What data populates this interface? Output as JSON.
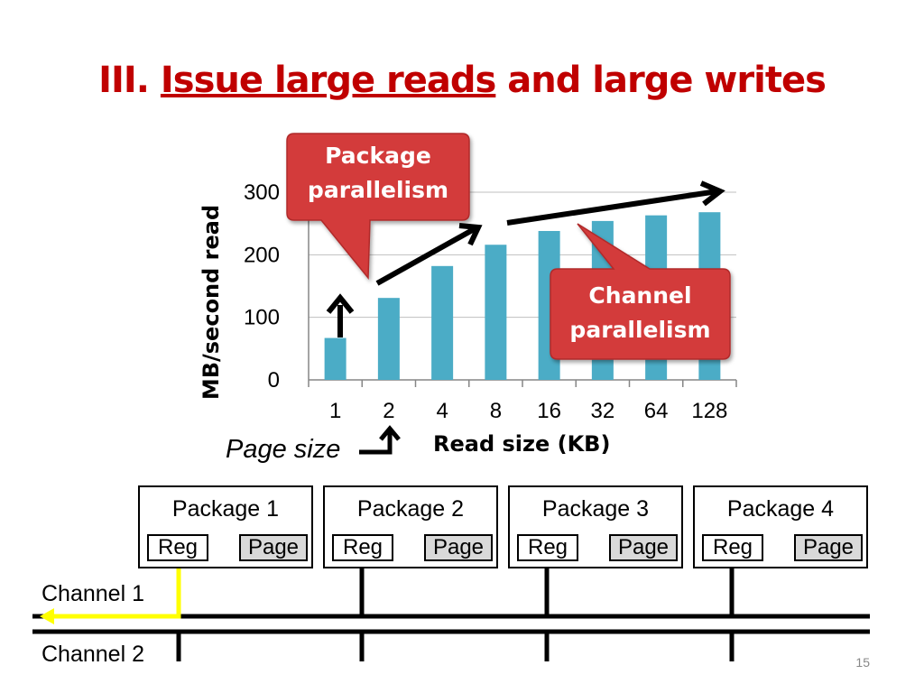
{
  "title": {
    "prefix": "III.",
    "underlined": "Issue large reads",
    "suffix": "and large writes"
  },
  "chart_data": {
    "type": "bar",
    "categories": [
      "1",
      "2",
      "4",
      "8",
      "16",
      "32",
      "64",
      "128"
    ],
    "values": [
      67,
      131,
      182,
      216,
      238,
      254,
      263,
      268
    ],
    "xlabel": "Read size (KB)",
    "ylabel": "MB/second read",
    "ylim": [
      0,
      300
    ],
    "yticks": [
      0,
      100,
      200,
      300
    ],
    "grid": true,
    "bar_color": "#4bacc6"
  },
  "callouts": {
    "package": "Package parallelism",
    "channel": "Channel parallelism"
  },
  "page_size_label": "Page size",
  "packages": [
    {
      "name": "Package 1",
      "reg": "Reg",
      "page": "Page"
    },
    {
      "name": "Package 2",
      "reg": "Reg",
      "page": "Page"
    },
    {
      "name": "Package 3",
      "reg": "Reg",
      "page": "Page"
    },
    {
      "name": "Package 4",
      "reg": "Reg",
      "page": "Page"
    }
  ],
  "channels": [
    "Channel 1",
    "Channel 2"
  ],
  "slide_number": "15",
  "colors": {
    "title": "#c00000",
    "callout": "#d33a3a",
    "highlight": "#ffff00",
    "bar": "#4bacc6"
  }
}
